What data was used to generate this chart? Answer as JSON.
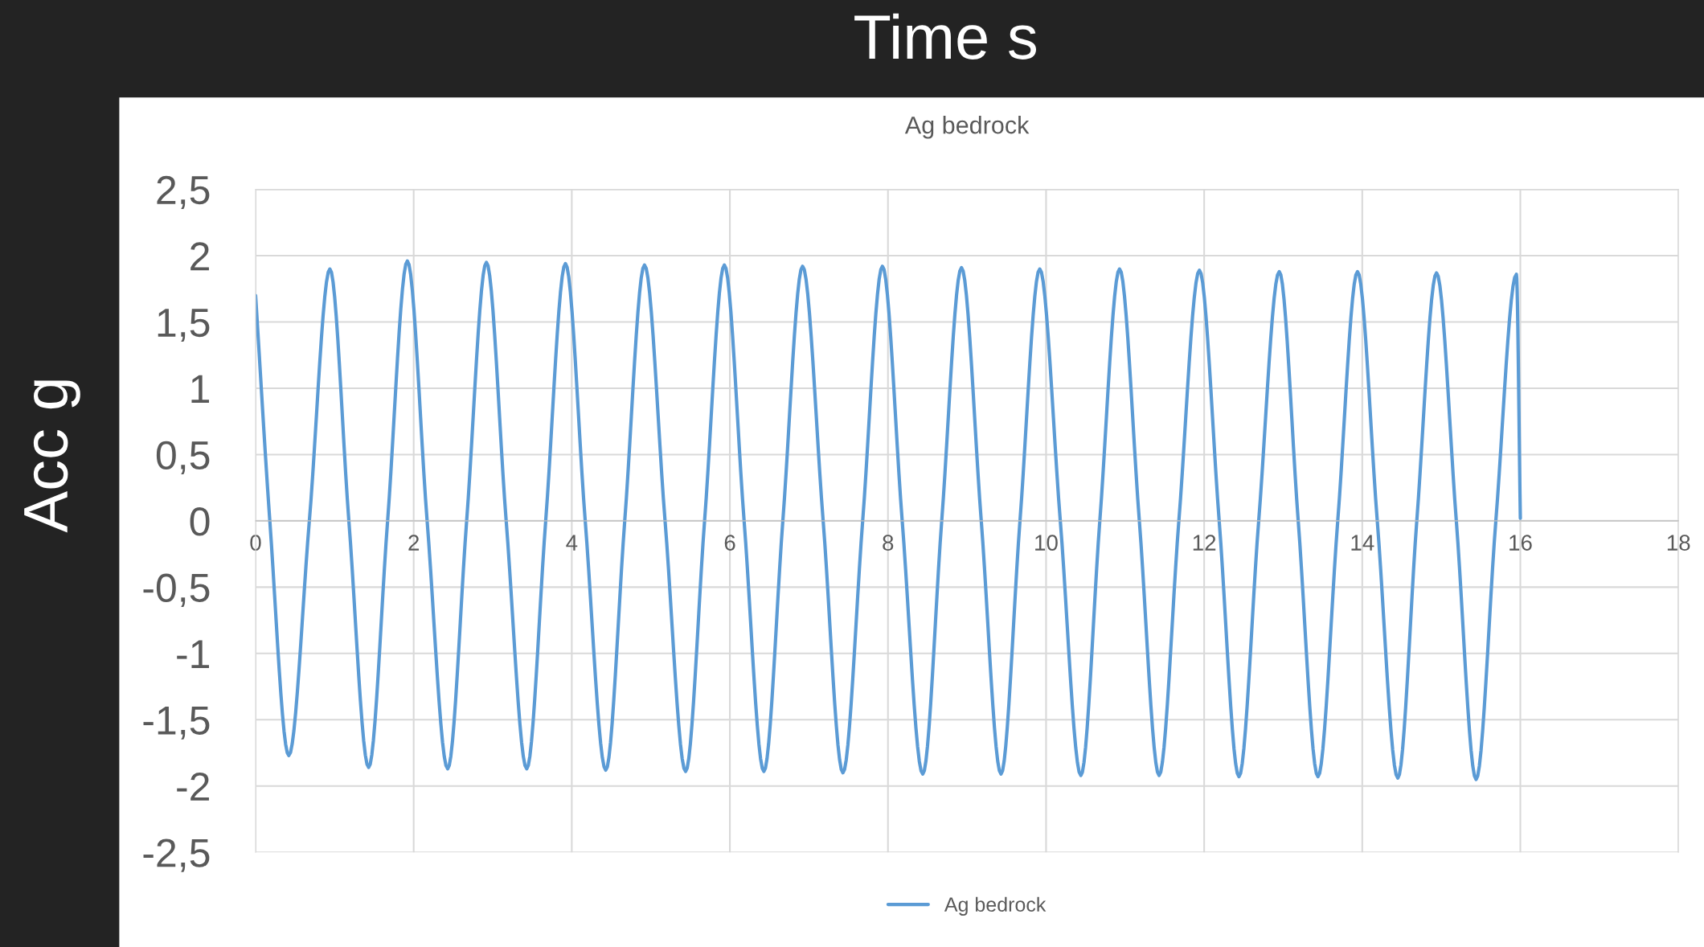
{
  "chart_data": {
    "type": "line",
    "title": "Ag bedrock",
    "xlabel": "Time s",
    "ylabel": "Acc g",
    "x": [
      0,
      0.18,
      0.42,
      0.68,
      0.94,
      1.18,
      1.43,
      1.67,
      1.92,
      2.17,
      2.43,
      2.67,
      2.92,
      3.17,
      3.43,
      3.67,
      3.92,
      4.17,
      4.43,
      4.67,
      4.92,
      5.18,
      5.44,
      5.68,
      5.93,
      6.18,
      6.43,
      6.67,
      6.92,
      7.18,
      7.43,
      7.68,
      7.93,
      8.18,
      8.44,
      8.68,
      8.93,
      9.18,
      9.43,
      9.67,
      9.92,
      10.18,
      10.44,
      10.68,
      10.93,
      11.18,
      11.43,
      11.68,
      11.94,
      12.19,
      12.44,
      12.69,
      12.95,
      13.19,
      13.44,
      13.69,
      13.94,
      14.19,
      14.45,
      14.69,
      14.94,
      15.19,
      15.44,
      15.69,
      15.95,
      16.0
    ],
    "series": [
      {
        "name": "Ag bedrock",
        "color": "#5b9bd5",
        "values": [
          1.7,
          0,
          -1.77,
          0,
          1.9,
          0,
          -1.86,
          0,
          1.96,
          0,
          -1.87,
          0,
          1.95,
          0,
          -1.87,
          0,
          1.94,
          0,
          -1.88,
          0,
          1.93,
          0,
          -1.89,
          0,
          1.93,
          0,
          -1.89,
          0,
          1.92,
          0,
          -1.9,
          0,
          1.92,
          0,
          -1.91,
          0,
          1.91,
          0,
          -1.91,
          0,
          1.9,
          0,
          -1.92,
          0,
          1.9,
          0,
          -1.92,
          0,
          1.89,
          0,
          -1.93,
          0,
          1.88,
          0,
          -1.93,
          0,
          1.88,
          0,
          -1.94,
          0,
          1.87,
          0,
          -1.95,
          0,
          1.86,
          0.02
        ]
      }
    ],
    "xlim": [
      0,
      18
    ],
    "xticks": [
      0,
      2,
      4,
      6,
      8,
      10,
      12,
      14,
      16,
      18
    ],
    "ylim": [
      -2.5,
      2.5
    ],
    "yticks": [
      {
        "value": -2.5,
        "label": "-2,5"
      },
      -2,
      {
        "value": -1.5,
        "label": "-1,5"
      },
      -1,
      {
        "value": -0.5,
        "label": "-0,5"
      },
      0,
      {
        "value": 0.5,
        "label": "0,5"
      },
      1,
      {
        "value": 1.5,
        "label": "1,5"
      },
      2,
      {
        "value": 2.5,
        "label": "2,5"
      }
    ],
    "grid": true,
    "legend": "bottom",
    "marker": "none",
    "line_style": "solid"
  }
}
